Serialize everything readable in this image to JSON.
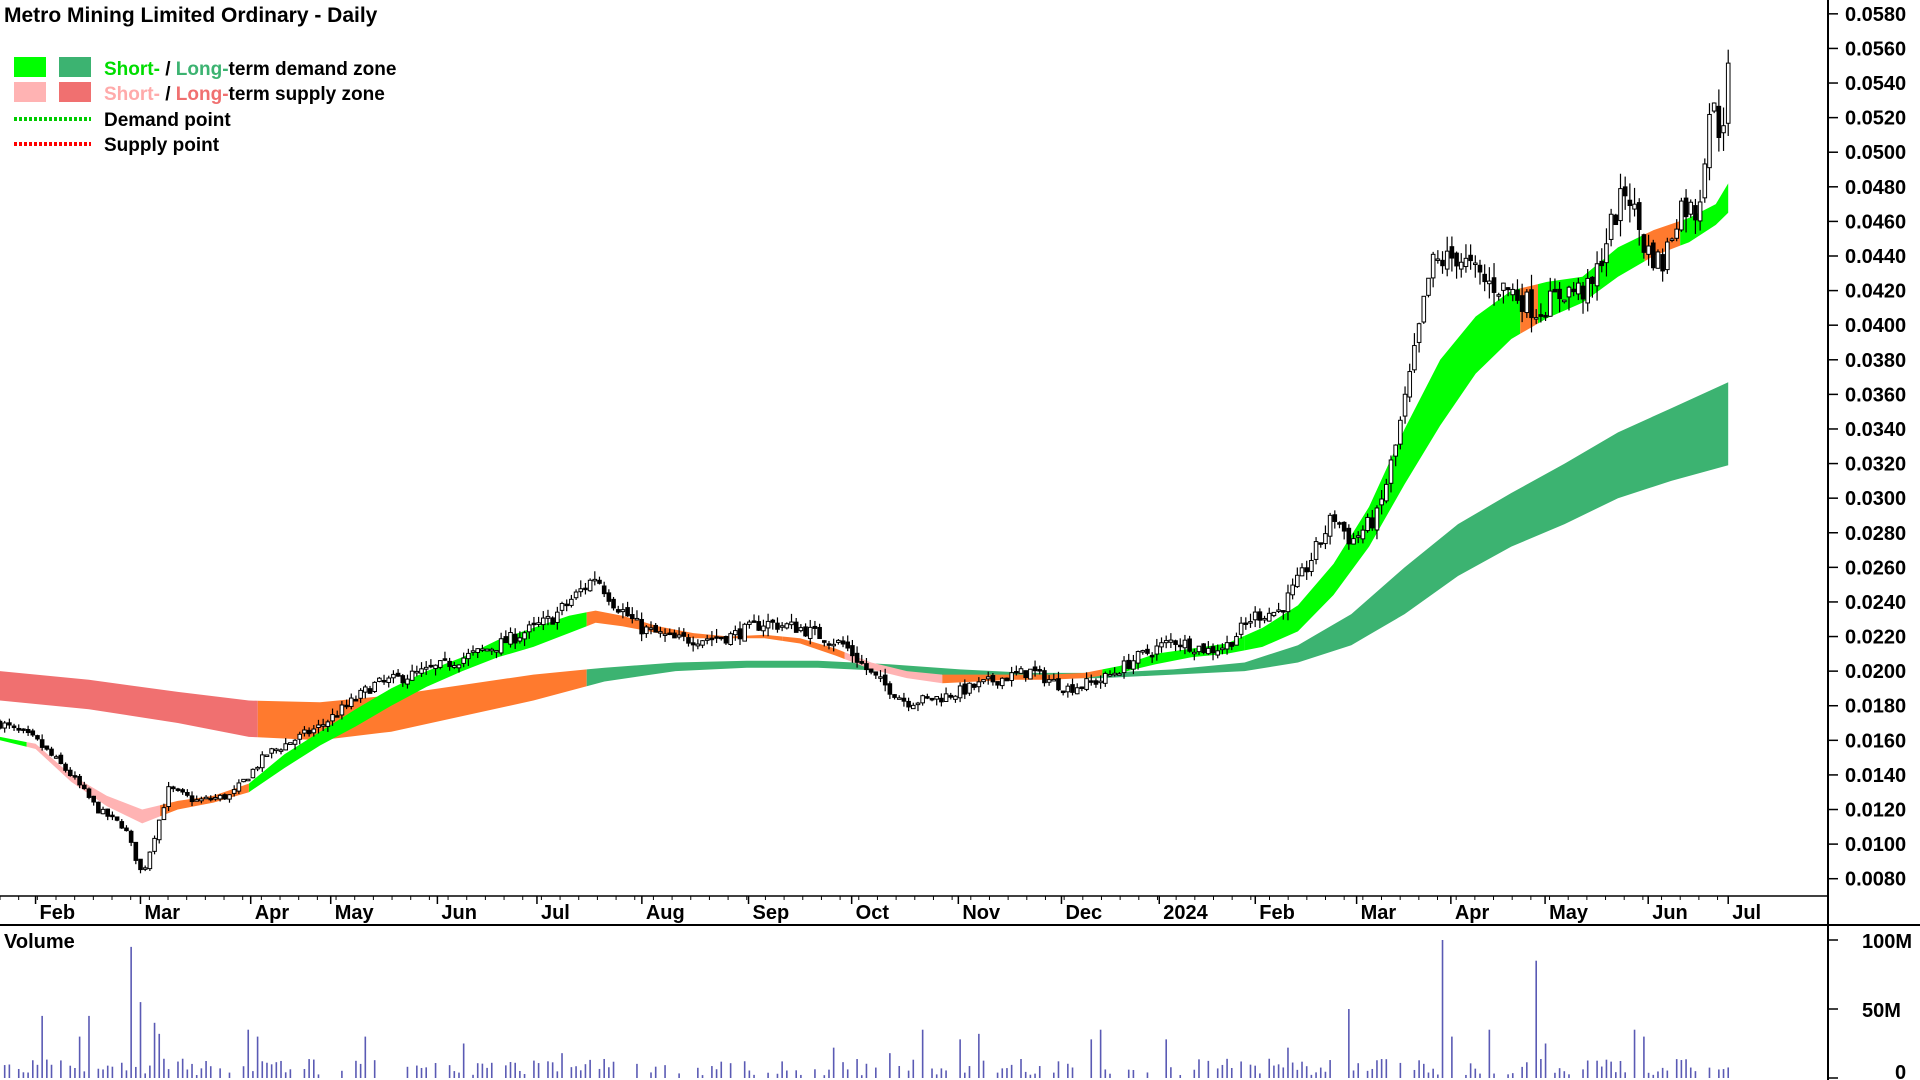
{
  "chart_data": {
    "type": "candlestick",
    "title": "Metro Mining Limited Ordinary - Daily",
    "legend": [
      {
        "short_label": "Short-",
        "sep": " / ",
        "long_label": "Long-",
        "rest": "term demand zone",
        "short_color": "#00ff00",
        "long_color": "#3cb371"
      },
      {
        "short_label": "Short-",
        "sep": " / ",
        "long_label": "Long-",
        "rest": "term supply zone",
        "short_color": "#ffb3b3",
        "long_color": "#f07070"
      },
      {
        "label": "Demand point",
        "color": "#00cc00"
      },
      {
        "label": "Supply point",
        "color": "#ff0000"
      }
    ],
    "legend_placement": "top-left",
    "price_axis": {
      "ylim": [
        0.007,
        0.0588
      ],
      "ticks": [
        "0.0580",
        "0.0560",
        "0.0540",
        "0.0520",
        "0.0500",
        "0.0480",
        "0.0460",
        "0.0440",
        "0.0420",
        "0.0400",
        "0.0380",
        "0.0360",
        "0.0340",
        "0.0320",
        "0.0300",
        "0.0280",
        "0.0260",
        "0.0240",
        "0.0220",
        "0.0200",
        "0.0180",
        "0.0160",
        "0.0140",
        "0.0120",
        "0.0100",
        "0.0080"
      ]
    },
    "x_axis": {
      "months": [
        "Feb",
        "Mar",
        "Apr",
        "May",
        "Jun",
        "Jul",
        "Aug",
        "Sep",
        "Oct",
        "Nov",
        "Dec",
        "2024",
        "Feb",
        "Mar",
        "Apr",
        "May",
        "Jun",
        "Jul"
      ],
      "month_pos": [
        0.02,
        0.079,
        0.141,
        0.186,
        0.246,
        0.302,
        0.361,
        0.421,
        0.479,
        0.539,
        0.597,
        0.652,
        0.706,
        0.763,
        0.816,
        0.869,
        0.927,
        0.972
      ]
    },
    "close_path": [
      [
        0,
        0.017
      ],
      [
        0.02,
        0.016
      ],
      [
        0.04,
        0.014
      ],
      [
        0.055,
        0.012
      ],
      [
        0.07,
        0.011
      ],
      [
        0.08,
        0.0082
      ],
      [
        0.095,
        0.0132
      ],
      [
        0.11,
        0.0125
      ],
      [
        0.13,
        0.0128
      ],
      [
        0.15,
        0.0152
      ],
      [
        0.18,
        0.0168
      ],
      [
        0.21,
        0.0192
      ],
      [
        0.24,
        0.02
      ],
      [
        0.28,
        0.0215
      ],
      [
        0.31,
        0.023
      ],
      [
        0.335,
        0.0255
      ],
      [
        0.345,
        0.024
      ],
      [
        0.36,
        0.0225
      ],
      [
        0.38,
        0.0218
      ],
      [
        0.41,
        0.022
      ],
      [
        0.43,
        0.0228
      ],
      [
        0.45,
        0.0225
      ],
      [
        0.475,
        0.0215
      ],
      [
        0.49,
        0.0198
      ],
      [
        0.51,
        0.0182
      ],
      [
        0.53,
        0.0185
      ],
      [
        0.56,
        0.0195
      ],
      [
        0.58,
        0.02
      ],
      [
        0.6,
        0.019
      ],
      [
        0.62,
        0.0195
      ],
      [
        0.64,
        0.0208
      ],
      [
        0.66,
        0.0218
      ],
      [
        0.68,
        0.0212
      ],
      [
        0.69,
        0.0215
      ],
      [
        0.705,
        0.0232
      ],
      [
        0.72,
        0.0235
      ],
      [
        0.735,
        0.026
      ],
      [
        0.75,
        0.029
      ],
      [
        0.76,
        0.0275
      ],
      [
        0.775,
        0.029
      ],
      [
        0.785,
        0.033
      ],
      [
        0.795,
        0.038
      ],
      [
        0.805,
        0.0435
      ],
      [
        0.82,
        0.044
      ],
      [
        0.835,
        0.0425
      ],
      [
        0.85,
        0.042
      ],
      [
        0.865,
        0.0408
      ],
      [
        0.88,
        0.042
      ],
      [
        0.895,
        0.042
      ],
      [
        0.905,
        0.0455
      ],
      [
        0.915,
        0.048
      ],
      [
        0.925,
        0.0445
      ],
      [
        0.935,
        0.0435
      ],
      [
        0.945,
        0.047
      ],
      [
        0.955,
        0.0465
      ],
      [
        0.962,
        0.053
      ],
      [
        0.968,
        0.051
      ],
      [
        0.972,
        0.0545
      ]
    ],
    "short_demand": [
      [
        0,
        0.0162,
        0.016
      ],
      [
        0.02,
        0.0158,
        0.0155
      ],
      [
        0.04,
        0.014,
        0.0136
      ],
      [
        0.06,
        0.0128,
        0.0122
      ],
      [
        0.08,
        0.012,
        0.0112
      ],
      [
        0.1,
        0.0125,
        0.012
      ],
      [
        0.12,
        0.0128,
        0.0124
      ],
      [
        0.14,
        0.0135,
        0.013
      ],
      [
        0.16,
        0.0152,
        0.0144
      ],
      [
        0.18,
        0.0165,
        0.0157
      ],
      [
        0.2,
        0.0178,
        0.0168
      ],
      [
        0.22,
        0.019,
        0.018
      ],
      [
        0.24,
        0.02,
        0.0191
      ],
      [
        0.26,
        0.0208,
        0.02
      ],
      [
        0.28,
        0.0218,
        0.0208
      ],
      [
        0.3,
        0.0225,
        0.0214
      ],
      [
        0.32,
        0.0232,
        0.0222
      ],
      [
        0.335,
        0.0235,
        0.0228
      ],
      [
        0.35,
        0.0232,
        0.0226
      ],
      [
        0.37,
        0.0226,
        0.0222
      ],
      [
        0.39,
        0.0222,
        0.0219
      ],
      [
        0.41,
        0.022,
        0.0219
      ],
      [
        0.43,
        0.0221,
        0.0219
      ],
      [
        0.45,
        0.0219,
        0.0216
      ],
      [
        0.47,
        0.0213,
        0.0209
      ],
      [
        0.49,
        0.0205,
        0.0201
      ],
      [
        0.51,
        0.02,
        0.0196
      ],
      [
        0.53,
        0.0198,
        0.0193
      ],
      [
        0.55,
        0.0198,
        0.0194
      ],
      [
        0.57,
        0.0198,
        0.0195
      ],
      [
        0.59,
        0.0198,
        0.0195
      ],
      [
        0.61,
        0.0199,
        0.0196
      ],
      [
        0.63,
        0.0203,
        0.0199
      ],
      [
        0.65,
        0.021,
        0.0204
      ],
      [
        0.67,
        0.0213,
        0.0208
      ],
      [
        0.69,
        0.0216,
        0.021
      ],
      [
        0.71,
        0.0225,
        0.0214
      ],
      [
        0.73,
        0.0238,
        0.0223
      ],
      [
        0.75,
        0.0262,
        0.0244
      ],
      [
        0.77,
        0.0295,
        0.0272
      ],
      [
        0.79,
        0.034,
        0.0308
      ],
      [
        0.81,
        0.038,
        0.0342
      ],
      [
        0.83,
        0.0405,
        0.0372
      ],
      [
        0.85,
        0.042,
        0.0392
      ],
      [
        0.87,
        0.0425,
        0.0404
      ],
      [
        0.89,
        0.0428,
        0.0413
      ],
      [
        0.91,
        0.0445,
        0.0428
      ],
      [
        0.93,
        0.0455,
        0.044
      ],
      [
        0.95,
        0.0462,
        0.0448
      ],
      [
        0.965,
        0.047,
        0.0458
      ],
      [
        0.972,
        0.0482,
        0.0465
      ]
    ],
    "long_demand": [
      [
        0,
        0.02,
        0.0183
      ],
      [
        0.05,
        0.0195,
        0.0178
      ],
      [
        0.1,
        0.0188,
        0.017
      ],
      [
        0.14,
        0.0183,
        0.0162
      ],
      [
        0.18,
        0.0182,
        0.016
      ],
      [
        0.22,
        0.0186,
        0.0165
      ],
      [
        0.26,
        0.0192,
        0.0174
      ],
      [
        0.3,
        0.0198,
        0.0183
      ],
      [
        0.34,
        0.0202,
        0.0194
      ],
      [
        0.38,
        0.0205,
        0.02
      ],
      [
        0.42,
        0.0206,
        0.0202
      ],
      [
        0.46,
        0.0206,
        0.0202
      ],
      [
        0.5,
        0.0204,
        0.02
      ],
      [
        0.54,
        0.0201,
        0.0197
      ],
      [
        0.58,
        0.0199,
        0.0196
      ],
      [
        0.62,
        0.0199,
        0.0196
      ],
      [
        0.66,
        0.0201,
        0.0198
      ],
      [
        0.7,
        0.0205,
        0.02
      ],
      [
        0.73,
        0.0215,
        0.0205
      ],
      [
        0.76,
        0.0233,
        0.0215
      ],
      [
        0.79,
        0.026,
        0.0233
      ],
      [
        0.82,
        0.0285,
        0.0255
      ],
      [
        0.85,
        0.0303,
        0.0272
      ],
      [
        0.88,
        0.032,
        0.0285
      ],
      [
        0.91,
        0.0338,
        0.03
      ],
      [
        0.94,
        0.0352,
        0.031
      ],
      [
        0.972,
        0.0367,
        0.0319
      ]
    ],
    "volume_axis": {
      "ticks": [
        "100M",
        "50M",
        "0"
      ],
      "label": "Volume",
      "ylim": [
        0,
        100
      ]
    },
    "volume_spikes": [
      [
        0.075,
        95
      ],
      [
        0.08,
        55
      ],
      [
        0.086,
        40
      ],
      [
        0.09,
        32
      ],
      [
        0.05,
        45
      ],
      [
        0.025,
        45
      ],
      [
        0.045,
        30
      ],
      [
        0.14,
        35
      ],
      [
        0.145,
        30
      ],
      [
        0.205,
        30
      ],
      [
        0.26,
        25
      ],
      [
        0.315,
        18
      ],
      [
        0.47,
        22
      ],
      [
        0.5,
        18
      ],
      [
        0.518,
        35
      ],
      [
        0.54,
        28
      ],
      [
        0.55,
        32
      ],
      [
        0.615,
        28
      ],
      [
        0.62,
        35
      ],
      [
        0.655,
        28
      ],
      [
        0.725,
        22
      ],
      [
        0.758,
        50
      ],
      [
        0.812,
        100
      ],
      [
        0.817,
        30
      ],
      [
        0.838,
        35
      ],
      [
        0.863,
        85
      ],
      [
        0.868,
        25
      ],
      [
        0.92,
        35
      ],
      [
        0.925,
        30
      ]
    ]
  },
  "colors": {
    "short_demand": "#00ff00",
    "long_demand": "#3cb371",
    "short_supply": "#ffb3b3",
    "long_supply": "#f07070",
    "overlap": "#ff7a2e",
    "volume": "#5a5ab4"
  }
}
